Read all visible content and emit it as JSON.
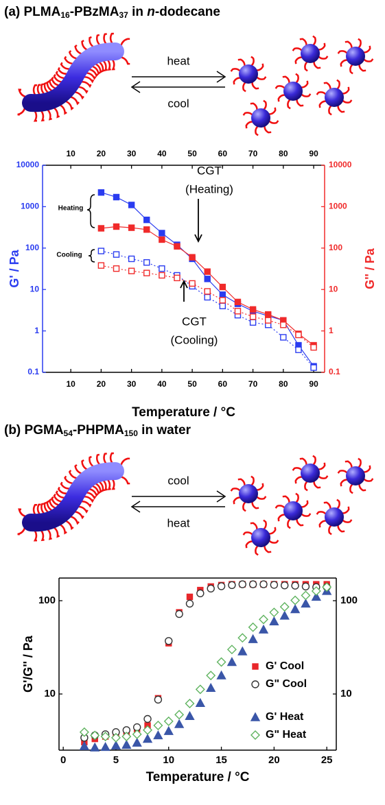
{
  "chart_data": [
    {
      "type": "line",
      "title": [
        "(a) PLMA",
        "16",
        "-PBzMA",
        "37",
        " in ",
        "n",
        "-dodecane"
      ],
      "scheme": {
        "forward": "heat",
        "backward": "cool"
      },
      "xlabel": "Temperature / °C",
      "ylabel": "G' / Pa",
      "y2label": "G'' / Pa",
      "log_y": true,
      "ycolor": "#2a3cf0",
      "y2color": "#f02a2a",
      "xlim": [
        0.7,
        93.6
      ],
      "xticks": [
        10,
        20,
        30,
        40,
        50,
        60,
        70,
        80,
        90
      ],
      "ylim": [
        0.1,
        10000
      ],
      "yticks": [
        0.1,
        1,
        10,
        100,
        1000,
        10000
      ],
      "y2lim": [
        0.1,
        10000
      ],
      "y2ticks": [
        0.1,
        1,
        10,
        100,
        1000,
        10000
      ],
      "x": [
        20,
        25,
        30,
        35,
        40,
        45,
        50,
        55,
        60,
        65,
        70,
        75,
        80,
        85,
        90
      ],
      "series": [
        {
          "color": "#2a3cf0",
          "marker": "square",
          "filled": true,
          "line": "solid",
          "values": [
            2200,
            1700,
            1100,
            480,
            230,
            120,
            55,
            18,
            7.5,
            4.5,
            3,
            2.3,
            1.8,
            0.45,
            0.14
          ]
        },
        {
          "color": "#f02a2a",
          "marker": "square",
          "filled": true,
          "line": "solid",
          "axis": "y2",
          "values": [
            300,
            330,
            310,
            280,
            160,
            110,
            60,
            27,
            11.5,
            5,
            3.3,
            2.5,
            1.8,
            0.85,
            0.45
          ]
        },
        {
          "color": "#2a3cf0",
          "marker": "square",
          "filled": false,
          "line": "dotted",
          "values": [
            85,
            70,
            55,
            45,
            32,
            22,
            12,
            6.5,
            4,
            2.4,
            1.6,
            1.4,
            0.7,
            0.35,
            0.13
          ]
        },
        {
          "color": "#f02a2a",
          "marker": "square",
          "filled": false,
          "line": "dotted",
          "axis": "y2",
          "values": [
            38,
            32,
            28,
            25,
            22,
            19,
            14,
            9,
            5.5,
            3,
            2.2,
            1.8,
            1.4,
            0.8,
            0.4
          ]
        }
      ],
      "annotations": [
        {
          "lines": [
            "CGT",
            "(Heating)"
          ]
        },
        {
          "lines": [
            "CGT",
            "(Cooling)"
          ]
        },
        {
          "lines": [
            "Heating"
          ]
        },
        {
          "lines": [
            "Cooling"
          ]
        }
      ]
    },
    {
      "type": "scatter",
      "title": [
        "(b) PGMA",
        "54",
        "-PHPMA",
        "150",
        " in water"
      ],
      "scheme": {
        "forward": "cool",
        "backward": "heat"
      },
      "xlabel": "Temperature / °C",
      "ylabel": "G'/G'' / Pa",
      "log_y": true,
      "ycolor": "#000000",
      "y2color": "#000000",
      "legend": "lower right",
      "xlim": [
        -0.4,
        25.9
      ],
      "xticks": [
        0,
        5,
        10,
        15,
        20,
        25
      ],
      "ylim": [
        2.5,
        175
      ],
      "yticks": [
        10,
        100
      ],
      "y2lim": [
        2.5,
        175
      ],
      "y2ticks": [
        10,
        100
      ],
      "x": [
        2,
        3,
        4,
        5,
        6,
        7,
        8,
        9,
        10,
        11,
        12,
        13,
        14,
        15,
        16,
        17,
        18,
        19,
        20,
        21,
        22,
        23,
        24,
        25
      ],
      "series": [
        {
          "name": "G' Cool",
          "color": "#e8262a",
          "marker": "square",
          "filled": true,
          "values": [
            3.05,
            3.3,
            3.5,
            3.7,
            3.9,
            4.2,
            4.6,
            9,
            35,
            75,
            110,
            130,
            142,
            147,
            150,
            150,
            150,
            150,
            150,
            150,
            150,
            150,
            150,
            150
          ]
        },
        {
          "name": "G\" Cool",
          "color": "#333333",
          "marker": "circle",
          "filled": false,
          "values": [
            3.4,
            3.6,
            3.7,
            3.9,
            4.1,
            4.4,
            5.4,
            8.7,
            37,
            72,
            93,
            120,
            135,
            143,
            147,
            150,
            150,
            150,
            148,
            146,
            145,
            142,
            140,
            140
          ]
        },
        {
          "name": "G' Heat",
          "color": "#3a56a8",
          "marker": "triangle",
          "filled": true,
          "values": [
            2.76,
            2.67,
            2.7,
            2.8,
            2.85,
            3,
            3.3,
            3.6,
            4,
            4.75,
            5.8,
            8,
            11.6,
            15.8,
            22,
            28.6,
            38.7,
            49,
            60,
            69,
            81,
            93,
            110,
            127
          ]
        },
        {
          "name": "G\" Heat",
          "color": "#5fb35f",
          "marker": "diamond",
          "filled": false,
          "values": [
            3.9,
            3.6,
            3.5,
            3.4,
            3.5,
            3.7,
            4.1,
            4.6,
            5.1,
            6,
            7.9,
            11.2,
            15.8,
            22,
            30,
            40,
            52,
            63,
            75,
            86,
            101,
            114,
            127,
            140
          ]
        }
      ]
    }
  ]
}
